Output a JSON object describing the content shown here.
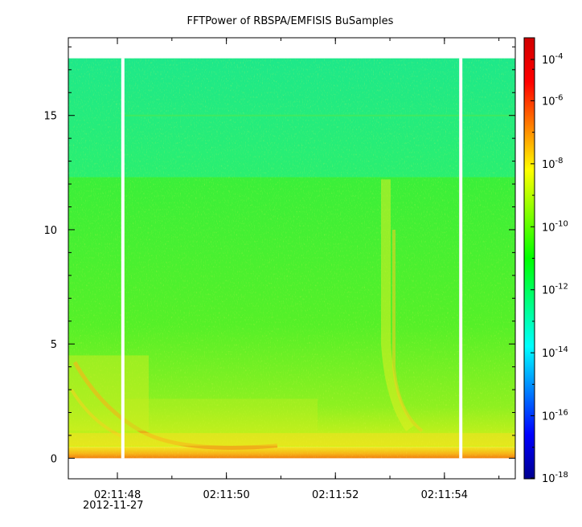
{
  "chart_data": {
    "type": "heatmap",
    "title": "FFTPower of RBSPA/EMFISIS  BuSamples",
    "xlabel": "",
    "ylabel": "",
    "x_ticks": [
      {
        "value": "02:11:48",
        "label": "02:11:48"
      },
      {
        "value": "02:11:50",
        "label": "02:11:50"
      },
      {
        "value": "02:11:52",
        "label": "02:11:52"
      },
      {
        "value": "02:11:54",
        "label": "02:11:54"
      }
    ],
    "x_date_label": "2012-11-27",
    "xlim": [
      "02:11:47.1",
      "02:11:55.3"
    ],
    "y_ticks": [
      0,
      5,
      10,
      15
    ],
    "ylim": [
      -0.9,
      18.4
    ],
    "data_ymax": 17.5,
    "colorbar": {
      "scale": "log",
      "range": [
        1e-18,
        0.0001
      ],
      "ticks": [
        {
          "exp": -4,
          "base": "10",
          "sup": "-4"
        },
        {
          "exp": -6,
          "base": "10",
          "sup": "-6"
        },
        {
          "exp": -8,
          "base": "10",
          "sup": "-8"
        },
        {
          "exp": -10,
          "base": "10",
          "sup": "-10"
        },
        {
          "exp": -12,
          "base": "10",
          "sup": "-12"
        },
        {
          "exp": -14,
          "base": "10",
          "sup": "-14"
        },
        {
          "exp": -16,
          "base": "10",
          "sup": "-16"
        },
        {
          "exp": -18,
          "base": "10",
          "sup": "-18"
        }
      ],
      "colors": [
        "#00008f",
        "#0000ff",
        "#0080ff",
        "#00ffff",
        "#00ff80",
        "#00ff00",
        "#80ff00",
        "#ffff00",
        "#ff8000",
        "#ff0000",
        "#d00000"
      ]
    },
    "data_gaps": [
      "02:11:48.1",
      "02:11:54.3"
    ],
    "spectral_regions": [
      {
        "fmin": 12.3,
        "fmax": 17.5,
        "level_exp": -12
      },
      {
        "fmin": 0.5,
        "fmax": 12.3,
        "level_exp": -10
      },
      {
        "fmin": 0.0,
        "fmax": 0.5,
        "level_exp": -8
      }
    ]
  }
}
